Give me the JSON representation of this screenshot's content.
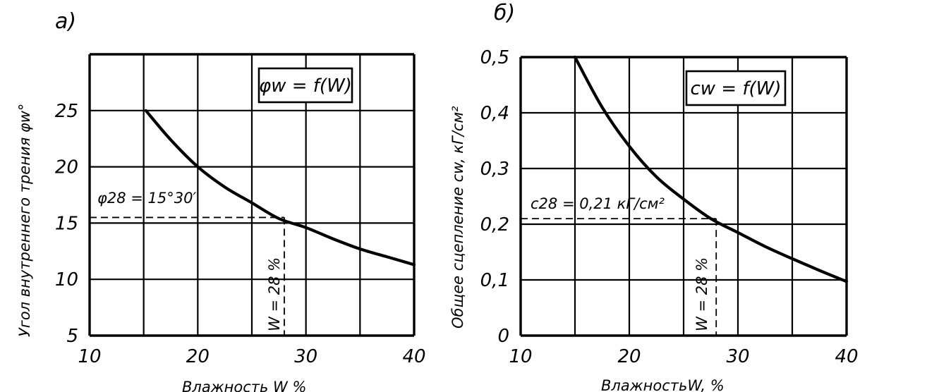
{
  "chart_data": [
    {
      "type": "line",
      "panel_label": "а)",
      "formula": "φw = f(W)",
      "ylabel": "Угол внутреннего трения φw°",
      "xlabel": "Влажность W %",
      "xlim": [
        10,
        40
      ],
      "ylim": [
        5,
        30
      ],
      "x_ticks": [
        "10",
        "20",
        "30",
        "40"
      ],
      "y_ticks": [
        "5",
        "10",
        "15",
        "20",
        "25"
      ],
      "grid": true,
      "series": [
        {
          "x": [
            15.2,
            17.5,
            20,
            22.5,
            25,
            27.5,
            30,
            32.5,
            35,
            37.5,
            40
          ],
          "y": [
            25,
            22.4,
            20,
            18.2,
            16.8,
            15.4,
            14.6,
            13.6,
            12.7,
            12,
            11.3
          ]
        }
      ],
      "annotations": [
        {
          "text": "φ28 = 15°30′",
          "x": 28,
          "y": 15.5
        },
        {
          "text": "W = 28 %",
          "x": 28,
          "y": 15.5
        }
      ]
    },
    {
      "type": "line",
      "panel_label": "б)",
      "formula": "cw = f(W)",
      "ylabel": "Общее сцепление cw, кГ/см²",
      "xlabel": "ВлажностьW, %",
      "xlim": [
        10,
        40
      ],
      "ylim": [
        0,
        0.5
      ],
      "x_ticks": [
        "10",
        "20",
        "30",
        "40"
      ],
      "y_ticks": [
        "0",
        "0,1",
        "0,2",
        "0,3",
        "0,4",
        "0,5"
      ],
      "grid": true,
      "series": [
        {
          "x": [
            15,
            17.5,
            20,
            22.5,
            25,
            27.5,
            30,
            32.5,
            35,
            37.5,
            40
          ],
          "y": [
            0.5,
            0.41,
            0.34,
            0.285,
            0.245,
            0.21,
            0.185,
            0.16,
            0.138,
            0.117,
            0.097
          ]
        }
      ],
      "annotations": [
        {
          "text": "c28 = 0,21 кГ/см²",
          "x": 28,
          "y": 0.21
        },
        {
          "text": "W = 28 %",
          "x": 28,
          "y": 0.21
        }
      ]
    }
  ]
}
